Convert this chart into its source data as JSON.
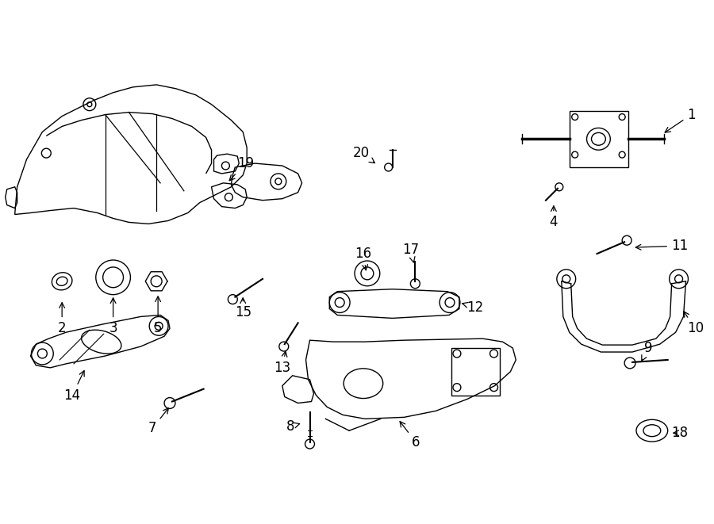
{
  "background_color": "#ffffff",
  "line_color": "#000000",
  "text_color": "#000000",
  "figsize": [
    9.0,
    6.61
  ],
  "dpi": 100
}
